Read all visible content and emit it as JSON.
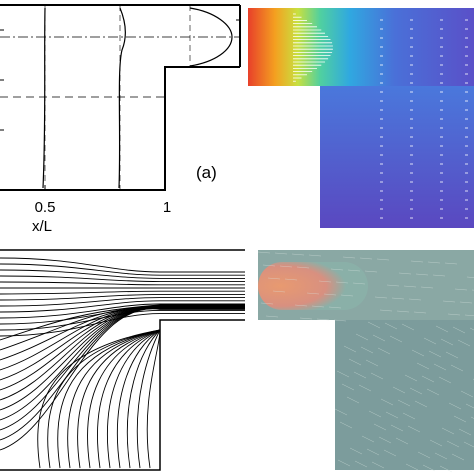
{
  "panel_a": {
    "label": "(a)",
    "x_axis": {
      "title": "x/L",
      "tick_labels": [
        "0.5",
        "1"
      ]
    }
  }
}
